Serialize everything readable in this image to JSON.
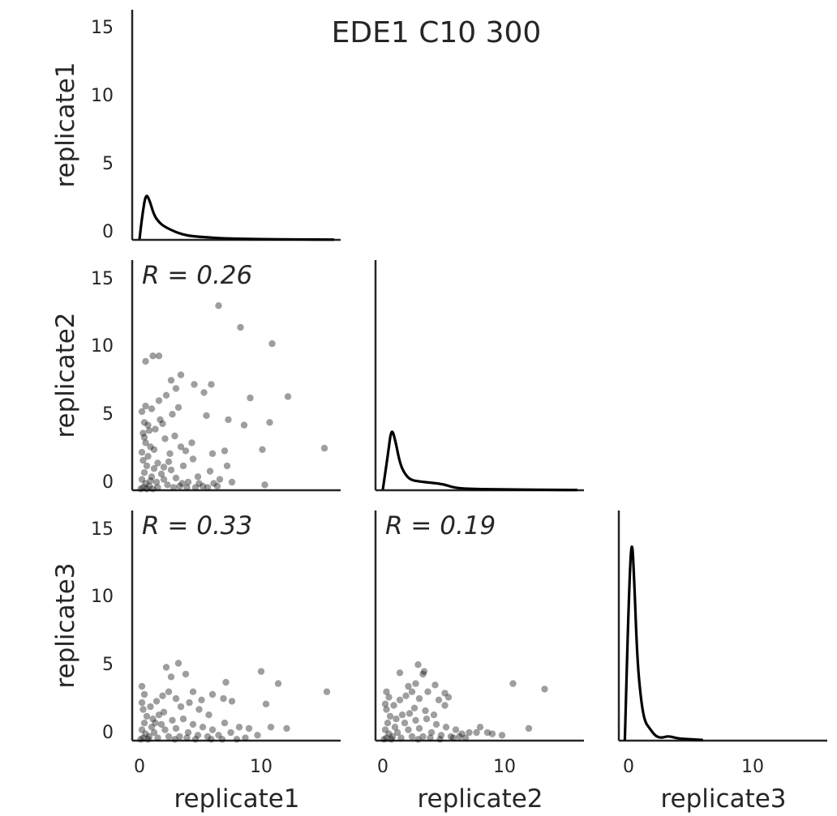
{
  "chart_data": {
    "type": "scatter",
    "title": "EDE1 C10 300",
    "variables": [
      "replicate1",
      "replicate2",
      "replicate3"
    ],
    "ylim": [
      0,
      16
    ],
    "xlim": [
      0,
      16
    ],
    "y_ticks": [
      "0",
      "5",
      "10",
      "15"
    ],
    "x_ticks": [
      "0",
      "10"
    ],
    "grid": false,
    "diagonal": [
      {
        "name": "replicate1",
        "x": [
          0,
          0.2,
          0.5,
          0.8,
          1.2,
          1.6,
          2,
          3,
          4,
          5,
          7,
          10,
          13,
          16
        ],
        "density": [
          0.05,
          1.6,
          3.4,
          3.0,
          1.8,
          1.3,
          1.0,
          0.55,
          0.3,
          0.22,
          0.1,
          0.05,
          0.03,
          0.02
        ]
      },
      {
        "name": "replicate2",
        "x": [
          0,
          0.4,
          0.7,
          1.0,
          1.4,
          1.8,
          2.3,
          3,
          4,
          5,
          6,
          8,
          11,
          14,
          16
        ],
        "density": [
          0.05,
          2.5,
          4.6,
          3.8,
          2.0,
          1.2,
          0.75,
          0.65,
          0.55,
          0.45,
          0.15,
          0.08,
          0.05,
          0.03,
          0.02
        ]
      },
      {
        "name": "replicate3",
        "x": [
          -0.3,
          0,
          0.25,
          0.45,
          0.7,
          1.0,
          1.3,
          1.7,
          2.2,
          2.7,
          3.2,
          4,
          5,
          6
        ],
        "density": [
          0.0,
          10.0,
          15.3,
          12.0,
          6.0,
          3.0,
          1.4,
          0.9,
          0.3,
          0.2,
          0.35,
          0.15,
          0.1,
          0.05
        ]
      }
    ],
    "panels": [
      {
        "id": "replicate2-vs-replicate1",
        "xvar": "replicate1",
        "yvar": "replicate2",
        "annotation": "R = 0.26",
        "points": [
          [
            0.3,
            0.2
          ],
          [
            0.5,
            0.5
          ],
          [
            0.2,
            0.8
          ],
          [
            0.8,
            0.3
          ],
          [
            1.0,
            1.0
          ],
          [
            0.4,
            1.3
          ],
          [
            0.6,
            1.8
          ],
          [
            0.3,
            2.2
          ],
          [
            0.2,
            2.8
          ],
          [
            0.5,
            3.5
          ],
          [
            0.3,
            4.2
          ],
          [
            0.4,
            5.0
          ],
          [
            0.2,
            5.8
          ],
          [
            0.5,
            6.2
          ],
          [
            0.8,
            4.4
          ],
          [
            1.2,
            3.0
          ],
          [
            1.5,
            2.0
          ],
          [
            1.8,
            1.2
          ],
          [
            2.0,
            0.8
          ],
          [
            2.3,
            0.4
          ],
          [
            2.6,
            1.5
          ],
          [
            3.0,
            0.9
          ],
          [
            3.3,
            0.3
          ],
          [
            3.6,
            1.8
          ],
          [
            4.0,
            0.6
          ],
          [
            4.4,
            2.3
          ],
          [
            4.8,
            1.0
          ],
          [
            5.2,
            0.3
          ],
          [
            1.1,
            0.1
          ],
          [
            1.4,
            0.6
          ],
          [
            0.7,
            2.5
          ],
          [
            0.9,
            3.2
          ],
          [
            1.3,
            4.5
          ],
          [
            1.7,
            5.2
          ],
          [
            2.1,
            3.8
          ],
          [
            2.5,
            2.7
          ],
          [
            2.9,
            4.0
          ],
          [
            3.4,
            3.2
          ],
          [
            3.8,
            2.9
          ],
          [
            4.3,
            3.5
          ],
          [
            1.0,
            6.0
          ],
          [
            1.6,
            6.6
          ],
          [
            2.2,
            7.0
          ],
          [
            3.0,
            7.5
          ],
          [
            2.6,
            8.1
          ],
          [
            3.4,
            8.5
          ],
          [
            0.5,
            9.5
          ],
          [
            1.1,
            9.9
          ],
          [
            1.6,
            9.9
          ],
          [
            4.5,
            7.8
          ],
          [
            5.3,
            7.2
          ],
          [
            5.9,
            7.8
          ],
          [
            6.5,
            13.6
          ],
          [
            8.3,
            12.0
          ],
          [
            10.9,
            10.8
          ],
          [
            12.2,
            6.9
          ],
          [
            15.2,
            3.1
          ],
          [
            10.3,
            0.4
          ],
          [
            9.1,
            6.8
          ],
          [
            10.1,
            3.0
          ],
          [
            10.7,
            5.0
          ],
          [
            8.6,
            4.8
          ],
          [
            7.3,
            5.2
          ],
          [
            7.0,
            2.9
          ],
          [
            6.6,
            0.8
          ],
          [
            5.8,
            1.4
          ],
          [
            6.1,
            0.5
          ],
          [
            7.2,
            1.8
          ],
          [
            6.0,
            2.7
          ],
          [
            5.5,
            5.5
          ],
          [
            2.0,
            1.7
          ],
          [
            2.4,
            2.1
          ],
          [
            1.2,
            1.6
          ],
          [
            0.9,
            0.7
          ],
          [
            1.5,
            0.2
          ],
          [
            0.1,
            0.1
          ],
          [
            0.6,
            0.1
          ],
          [
            2.8,
            0.2
          ],
          [
            3.5,
            0.5
          ],
          [
            4.6,
            0.2
          ],
          [
            0.4,
            3.9
          ],
          [
            0.7,
            4.8
          ],
          [
            1.9,
            4.9
          ],
          [
            2.7,
            5.6
          ],
          [
            3.2,
            6.1
          ],
          [
            4.9,
            0.5
          ],
          [
            5.6,
            0.2
          ],
          [
            6.4,
            0.3
          ],
          [
            7.6,
            0.6
          ],
          [
            3.9,
            0.2
          ]
        ]
      },
      {
        "id": "replicate3-vs-replicate1",
        "xvar": "replicate1",
        "yvar": "replicate3",
        "annotation": "R = 0.33",
        "points": [
          [
            0.3,
            0.2
          ],
          [
            0.5,
            0.5
          ],
          [
            0.2,
            0.8
          ],
          [
            0.8,
            0.3
          ],
          [
            1.0,
            1.0
          ],
          [
            0.4,
            1.3
          ],
          [
            0.6,
            1.8
          ],
          [
            0.3,
            2.3
          ],
          [
            0.2,
            2.8
          ],
          [
            0.4,
            3.4
          ],
          [
            0.2,
            4.0
          ],
          [
            1.2,
            0.6
          ],
          [
            1.5,
            0.2
          ],
          [
            1.8,
            1.2
          ],
          [
            2.1,
            0.8
          ],
          [
            2.4,
            0.3
          ],
          [
            2.7,
            1.5
          ],
          [
            3.0,
            0.9
          ],
          [
            3.3,
            0.3
          ],
          [
            3.6,
            1.6
          ],
          [
            4.0,
            0.6
          ],
          [
            4.4,
            1.2
          ],
          [
            4.8,
            0.4
          ],
          [
            5.2,
            1.0
          ],
          [
            5.6,
            0.3
          ],
          [
            6.0,
            0.8
          ],
          [
            6.5,
            0.4
          ],
          [
            7.0,
            1.3
          ],
          [
            7.5,
            0.6
          ],
          [
            8.2,
            1.0
          ],
          [
            9.0,
            0.9
          ],
          [
            9.7,
            0.4
          ],
          [
            10.8,
            1.0
          ],
          [
            12.1,
            0.9
          ],
          [
            0.9,
            2.5
          ],
          [
            1.4,
            2.9
          ],
          [
            1.9,
            3.3
          ],
          [
            2.4,
            3.6
          ],
          [
            3.0,
            3.1
          ],
          [
            2.2,
            5.4
          ],
          [
            2.6,
            4.7
          ],
          [
            3.2,
            5.7
          ],
          [
            3.8,
            4.9
          ],
          [
            4.4,
            3.6
          ],
          [
            5.1,
            3.0
          ],
          [
            6.0,
            3.4
          ],
          [
            7.1,
            4.3
          ],
          [
            7.6,
            2.9
          ],
          [
            10.0,
            5.1
          ],
          [
            10.4,
            2.7
          ],
          [
            11.4,
            4.2
          ],
          [
            15.4,
            3.6
          ],
          [
            6.9,
            3.1
          ],
          [
            5.7,
            1.9
          ],
          [
            4.9,
            2.3
          ],
          [
            1.1,
            1.6
          ],
          [
            1.6,
            1.9
          ],
          [
            2.0,
            2.1
          ],
          [
            0.1,
            0.1
          ],
          [
            0.7,
            0.1
          ],
          [
            2.9,
            0.1
          ],
          [
            3.9,
            0.2
          ],
          [
            4.6,
            0.1
          ],
          [
            5.9,
            0.1
          ],
          [
            6.8,
            0.1
          ],
          [
            8.7,
            0.2
          ],
          [
            8.0,
            0.1
          ],
          [
            3.4,
            2.5
          ],
          [
            4.1,
            2.8
          ],
          [
            1.3,
            1.3
          ]
        ]
      },
      {
        "id": "replicate3-vs-replicate2",
        "xvar": "replicate2",
        "yvar": "replicate3",
        "annotation": "R = 0.19",
        "points": [
          [
            0.3,
            0.2
          ],
          [
            0.5,
            0.5
          ],
          [
            0.2,
            0.8
          ],
          [
            0.8,
            0.3
          ],
          [
            1.0,
            1.0
          ],
          [
            0.4,
            1.3
          ],
          [
            0.6,
            1.8
          ],
          [
            0.3,
            2.3
          ],
          [
            0.2,
            2.7
          ],
          [
            0.5,
            3.2
          ],
          [
            0.3,
            3.6
          ],
          [
            1.2,
            0.6
          ],
          [
            1.5,
            0.2
          ],
          [
            1.8,
            1.3
          ],
          [
            2.1,
            0.8
          ],
          [
            2.4,
            0.3
          ],
          [
            2.7,
            1.5
          ],
          [
            3.0,
            0.9
          ],
          [
            3.3,
            0.3
          ],
          [
            3.6,
            1.6
          ],
          [
            4.0,
            0.6
          ],
          [
            4.4,
            1.2
          ],
          [
            4.8,
            0.4
          ],
          [
            5.2,
            1.0
          ],
          [
            5.6,
            0.3
          ],
          [
            6.0,
            0.8
          ],
          [
            6.5,
            0.5
          ],
          [
            7.1,
            0.6
          ],
          [
            8.0,
            1.0
          ],
          [
            9.0,
            0.5
          ],
          [
            9.8,
            0.4
          ],
          [
            0.9,
            2.6
          ],
          [
            1.4,
            3.0
          ],
          [
            1.9,
            3.3
          ],
          [
            2.4,
            3.6
          ],
          [
            3.0,
            3.1
          ],
          [
            2.1,
            4.0
          ],
          [
            2.7,
            4.2
          ],
          [
            3.3,
            4.9
          ],
          [
            3.7,
            3.6
          ],
          [
            4.3,
            4.1
          ],
          [
            4.6,
            3.0
          ],
          [
            5.1,
            3.5
          ],
          [
            5.4,
            3.2
          ],
          [
            1.4,
            5.0
          ],
          [
            2.9,
            5.6
          ],
          [
            3.4,
            5.1
          ],
          [
            5.1,
            2.6
          ],
          [
            10.7,
            4.2
          ],
          [
            13.3,
            3.8
          ],
          [
            12.0,
            0.9
          ],
          [
            6.3,
            0.3
          ],
          [
            7.7,
            0.6
          ],
          [
            8.6,
            0.6
          ],
          [
            2.2,
            2.0
          ],
          [
            1.6,
            1.9
          ],
          [
            0.1,
            0.1
          ],
          [
            0.7,
            0.1
          ],
          [
            2.9,
            0.1
          ],
          [
            3.9,
            0.2
          ],
          [
            4.7,
            0.1
          ],
          [
            5.8,
            0.2
          ],
          [
            6.8,
            0.2
          ],
          [
            1.1,
            1.6
          ],
          [
            2.6,
            2.4
          ],
          [
            3.5,
            2.2
          ],
          [
            4.2,
            1.9
          ]
        ]
      }
    ]
  }
}
